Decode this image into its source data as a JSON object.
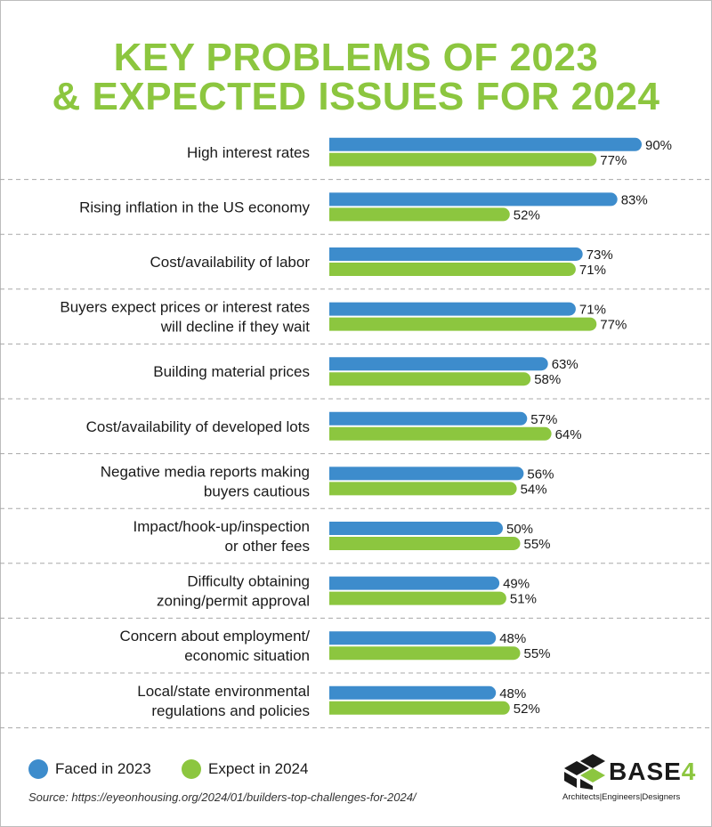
{
  "title_line1": "KEY PROBLEMS OF 2023",
  "title_line2": "& EXPECTED ISSUES FOR 2024",
  "colors": {
    "title": "#8cc63f",
    "series_2023": "#3d8ccc",
    "series_2024": "#8cc63f"
  },
  "chart_data": {
    "type": "bar",
    "orientation": "horizontal",
    "categories": [
      [
        "High interest rates"
      ],
      [
        "Rising inflation in the US economy"
      ],
      [
        "Cost/availability of labor"
      ],
      [
        "Buyers expect prices or interest rates",
        "will decline if they wait"
      ],
      [
        "Building material prices"
      ],
      [
        "Cost/availability of developed lots"
      ],
      [
        "Negative media reports making",
        "buyers cautious"
      ],
      [
        "Impact/hook-up/inspection",
        "or other fees"
      ],
      [
        "Difficulty obtaining",
        "zoning/permit approval"
      ],
      [
        "Concern about employment/",
        "economic situation"
      ],
      [
        "Local/state environmental",
        "regulations and policies"
      ]
    ],
    "series": [
      {
        "name": "Faced in 2023",
        "values": [
          90,
          83,
          73,
          71,
          63,
          57,
          56,
          50,
          49,
          48,
          48
        ]
      },
      {
        "name": "Expect in 2024",
        "values": [
          77,
          52,
          71,
          77,
          58,
          64,
          54,
          55,
          51,
          55,
          52
        ]
      }
    ],
    "value_suffix": "%",
    "xlim": [
      0,
      100
    ],
    "legend_position": "bottom-left"
  },
  "legend": {
    "item1": "Faced in 2023",
    "item2": "Expect in 2024"
  },
  "source": "Source: https://eyeonhousing.org/2024/01/builders-top-challenges-for-2024/",
  "logo": {
    "name": "BASE",
    "suffix": "4",
    "tagline": "Architects|Engineers|Designers"
  }
}
